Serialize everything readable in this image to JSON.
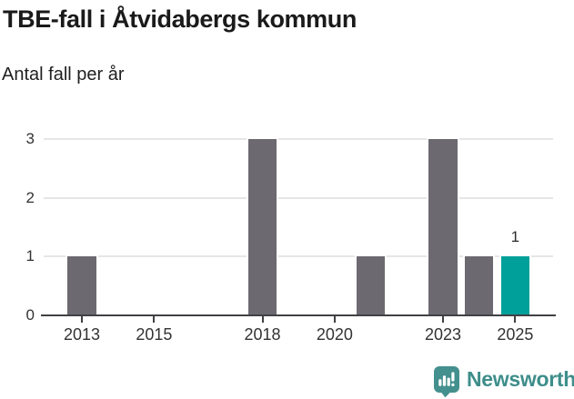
{
  "header": {
    "title": "TBE-fall i Åtvidabergs kommun",
    "subtitle": "Antal fall per år"
  },
  "chart_data": {
    "type": "bar",
    "title": "TBE-fall i Åtvidabergs kommun",
    "subtitle_as_ylabel": "Antal fall per år",
    "xlabel": "",
    "categories": [
      2013,
      2014,
      2015,
      2016,
      2017,
      2018,
      2019,
      2020,
      2021,
      2022,
      2023,
      2024,
      2025
    ],
    "values": [
      1,
      0,
      0,
      0,
      0,
      3,
      0,
      0,
      1,
      0,
      3,
      1,
      1
    ],
    "highlight_category": 2025,
    "data_labels": [
      {
        "category": 2025,
        "text": "1"
      }
    ],
    "x_tick_years": [
      2013,
      2015,
      2018,
      2020,
      2023,
      2025
    ],
    "x_tick_labels": [
      "2013",
      "2015",
      "2018",
      "2020",
      "2023",
      "2025"
    ],
    "y_ticks": [
      0,
      1,
      2,
      3
    ],
    "ylim": [
      0,
      3
    ],
    "xlim": [
      2012,
      2026
    ],
    "grid": true,
    "legend_position": "none",
    "bar_color": "#6c6970",
    "highlight_color": "#00a09a",
    "gridline_color": "#e6e6e6",
    "axis_color": "#414145",
    "tick_label_color": "#333333"
  },
  "footer": {
    "brand": "Newsworthy",
    "brand_color": "#3e8e8b",
    "logo_icon": "newsworthy-speech-bubble-bar-chart-icon"
  }
}
